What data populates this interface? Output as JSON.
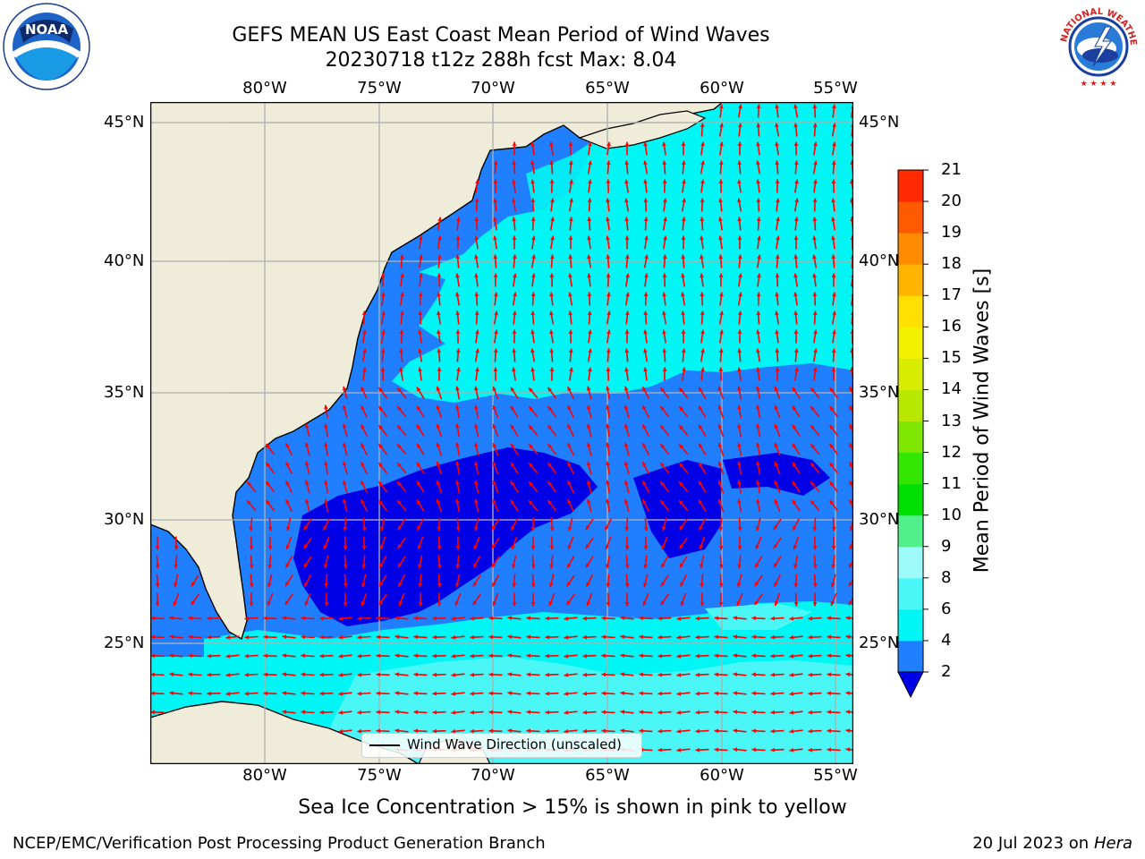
{
  "title": {
    "line1": "GEFS MEAN US East Coast Mean Period of Wind Waves",
    "line2": "20230718 t12z 288h fcst   Max: 8.04"
  },
  "map": {
    "lon_labels": [
      "80°W",
      "75°W",
      "70°W",
      "65°W",
      "60°W",
      "55°W"
    ],
    "lat_labels": [
      "45°N",
      "40°N",
      "35°N",
      "30°N",
      "25°N"
    ],
    "legend_label": "Wind Wave Direction (unscaled)",
    "colors": {
      "land": "#efedda",
      "band_2_4": "#1f7fff",
      "band_4_6": "#00f5f5",
      "band_6_8": "#4af6f6",
      "below_2": "#0000e6",
      "arrow": "#ff0000",
      "grid": "#b0b0b0"
    }
  },
  "colorbar": {
    "title": "Mean Period of Wind Waves [s]",
    "ticks": [
      "2",
      "4",
      "6",
      "8",
      "9",
      "10",
      "11",
      "12",
      "13",
      "14",
      "15",
      "16",
      "17",
      "18",
      "19",
      "20",
      "21"
    ],
    "colors": [
      "#1f7fff",
      "#00f5f5",
      "#4af6f6",
      "#9ffafa",
      "#52f08a",
      "#00e000",
      "#33e600",
      "#7fe600",
      "#b8e800",
      "#d8ec00",
      "#f2f200",
      "#ffe000",
      "#ffb400",
      "#ff8c00",
      "#ff5a00",
      "#ff2a00"
    ],
    "extend_color": "#0000e6"
  },
  "note": "Sea Ice Concentration > 15% is shown in pink to yellow",
  "footer": {
    "left": "NCEP/EMC/Verification Post Processing Product Generation Branch",
    "right_date": "20 Jul 2023 on",
    "right_machine": "Hera"
  },
  "logos": {
    "noaa_text": "NOAA",
    "nws_text": "NATIONAL WEATHER SERVICE"
  }
}
